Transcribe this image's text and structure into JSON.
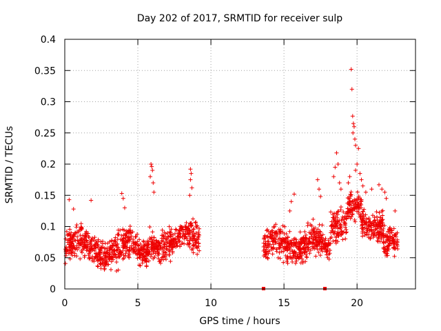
{
  "chart_data": {
    "type": "scatter",
    "title": "Day 202 of 2017, SRMTID for receiver sulp",
    "xlabel": "GPS time / hours",
    "ylabel": "SRMTID / TECUs",
    "xlim": [
      0,
      24
    ],
    "ylim": [
      0,
      0.4
    ],
    "xticks": [
      0,
      5,
      10,
      15,
      20
    ],
    "xtick_labels": [
      "0",
      "5",
      "10",
      "15",
      "20"
    ],
    "yticks": [
      0,
      0.05,
      0.1,
      0.15,
      0.2,
      0.25,
      0.3,
      0.35,
      0.4
    ],
    "ytick_labels": [
      "0",
      "0.05",
      "0.1",
      "0.15",
      "0.2",
      "0.25",
      "0.3",
      "0.35",
      "0.4"
    ],
    "grid": true,
    "marker": "+",
    "marker_color": "#ee0000",
    "segments": [
      {
        "t_start": 0.0,
        "t_end": 9.2,
        "baseline": 0.065
      },
      {
        "t_start": 13.6,
        "t_end": 22.8,
        "baseline": 0.07
      }
    ],
    "zero_markers": [
      13.6,
      17.8
    ],
    "notable_points": [
      {
        "x": 0.3,
        "y": 0.143
      },
      {
        "x": 0.6,
        "y": 0.128
      },
      {
        "x": 1.8,
        "y": 0.142
      },
      {
        "x": 3.9,
        "y": 0.153
      },
      {
        "x": 4.0,
        "y": 0.145
      },
      {
        "x": 4.1,
        "y": 0.13
      },
      {
        "x": 5.9,
        "y": 0.2
      },
      {
        "x": 5.95,
        "y": 0.196
      },
      {
        "x": 6.0,
        "y": 0.19
      },
      {
        "x": 6.05,
        "y": 0.17
      },
      {
        "x": 5.85,
        "y": 0.18
      },
      {
        "x": 6.1,
        "y": 0.155
      },
      {
        "x": 8.6,
        "y": 0.192
      },
      {
        "x": 8.65,
        "y": 0.185
      },
      {
        "x": 8.6,
        "y": 0.175
      },
      {
        "x": 8.7,
        "y": 0.162
      },
      {
        "x": 8.55,
        "y": 0.15
      },
      {
        "x": 15.7,
        "y": 0.152
      },
      {
        "x": 15.5,
        "y": 0.14
      },
      {
        "x": 15.4,
        "y": 0.125
      },
      {
        "x": 17.3,
        "y": 0.175
      },
      {
        "x": 17.4,
        "y": 0.16
      },
      {
        "x": 17.5,
        "y": 0.148
      },
      {
        "x": 18.5,
        "y": 0.195
      },
      {
        "x": 18.6,
        "y": 0.218
      },
      {
        "x": 18.7,
        "y": 0.2
      },
      {
        "x": 18.4,
        "y": 0.18
      },
      {
        "x": 18.8,
        "y": 0.17
      },
      {
        "x": 18.9,
        "y": 0.16
      },
      {
        "x": 19.6,
        "y": 0.352
      },
      {
        "x": 19.65,
        "y": 0.32
      },
      {
        "x": 19.7,
        "y": 0.277
      },
      {
        "x": 19.75,
        "y": 0.265
      },
      {
        "x": 19.8,
        "y": 0.26
      },
      {
        "x": 19.72,
        "y": 0.25
      },
      {
        "x": 19.85,
        "y": 0.24
      },
      {
        "x": 19.9,
        "y": 0.23
      },
      {
        "x": 20.1,
        "y": 0.225
      },
      {
        "x": 20.0,
        "y": 0.2
      },
      {
        "x": 19.9,
        "y": 0.19
      },
      {
        "x": 20.2,
        "y": 0.185
      },
      {
        "x": 20.3,
        "y": 0.175
      },
      {
        "x": 20.4,
        "y": 0.165
      },
      {
        "x": 19.5,
        "y": 0.18
      },
      {
        "x": 19.4,
        "y": 0.17
      },
      {
        "x": 20.6,
        "y": 0.155
      },
      {
        "x": 21.0,
        "y": 0.16
      },
      {
        "x": 21.5,
        "y": 0.167
      },
      {
        "x": 21.7,
        "y": 0.16
      },
      {
        "x": 21.9,
        "y": 0.155
      },
      {
        "x": 22.0,
        "y": 0.145
      },
      {
        "x": 22.6,
        "y": 0.125
      }
    ]
  }
}
